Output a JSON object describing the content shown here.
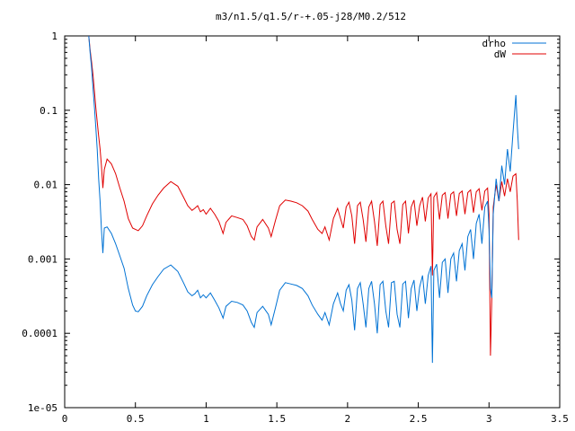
{
  "chart_data": {
    "type": "line",
    "title": "m3/n1.5/q1.5/r-+.05-j28/M0.2/512",
    "xlabel": "",
    "ylabel": "",
    "xlim": [
      0,
      3.5
    ],
    "ylim": [
      1e-05,
      1
    ],
    "yscale": "log",
    "grid": false,
    "legend_position": "top-right",
    "x_ticks": [
      {
        "value": 0,
        "label": "0"
      },
      {
        "value": 0.5,
        "label": "0.5"
      },
      {
        "value": 1,
        "label": "1"
      },
      {
        "value": 1.5,
        "label": "1.5"
      },
      {
        "value": 2,
        "label": "2"
      },
      {
        "value": 2.5,
        "label": "2.5"
      },
      {
        "value": 3,
        "label": "3"
      },
      {
        "value": 3.5,
        "label": "3.5"
      }
    ],
    "y_ticks": [
      {
        "value": 1,
        "label": "1"
      },
      {
        "value": 0.1,
        "label": "0.1"
      },
      {
        "value": 0.01,
        "label": "0.01"
      },
      {
        "value": 0.001,
        "label": "0.001"
      },
      {
        "value": 0.0001,
        "label": "0.0001"
      },
      {
        "value": 1e-05,
        "label": "1e-05"
      }
    ],
    "series": [
      {
        "name": "drho",
        "color": "#0072d4",
        "points": [
          [
            0.17,
            1.0
          ],
          [
            0.18,
            0.6
          ],
          [
            0.19,
            0.38
          ],
          [
            0.2,
            0.2
          ],
          [
            0.21,
            0.11
          ],
          [
            0.22,
            0.06
          ],
          [
            0.23,
            0.03
          ],
          [
            0.24,
            0.012
          ],
          [
            0.25,
            0.006
          ],
          [
            0.26,
            0.0025
          ],
          [
            0.27,
            0.0012
          ],
          [
            0.28,
            0.0026
          ],
          [
            0.3,
            0.0027
          ],
          [
            0.33,
            0.0022
          ],
          [
            0.36,
            0.0016
          ],
          [
            0.39,
            0.0011
          ],
          [
            0.42,
            0.00075
          ],
          [
            0.45,
            0.0004
          ],
          [
            0.48,
            0.00024
          ],
          [
            0.5,
            0.0002
          ],
          [
            0.52,
            0.000195
          ],
          [
            0.55,
            0.00023
          ],
          [
            0.58,
            0.00032
          ],
          [
            0.62,
            0.00045
          ],
          [
            0.66,
            0.00058
          ],
          [
            0.7,
            0.00073
          ],
          [
            0.75,
            0.00083
          ],
          [
            0.8,
            0.00068
          ],
          [
            0.84,
            0.00048
          ],
          [
            0.87,
            0.00036
          ],
          [
            0.9,
            0.00032
          ],
          [
            0.92,
            0.00034
          ],
          [
            0.94,
            0.00038
          ],
          [
            0.96,
            0.0003
          ],
          [
            0.98,
            0.00033
          ],
          [
            1.0,
            0.0003
          ],
          [
            1.03,
            0.00035
          ],
          [
            1.06,
            0.00028
          ],
          [
            1.09,
            0.00022
          ],
          [
            1.12,
            0.00016
          ],
          [
            1.14,
            0.00023
          ],
          [
            1.18,
            0.00027
          ],
          [
            1.22,
            0.00026
          ],
          [
            1.26,
            0.00024
          ],
          [
            1.29,
            0.0002
          ],
          [
            1.32,
            0.00014
          ],
          [
            1.34,
            0.00012
          ],
          [
            1.36,
            0.00019
          ],
          [
            1.4,
            0.00023
          ],
          [
            1.44,
            0.00018
          ],
          [
            1.46,
            0.00013
          ],
          [
            1.49,
            0.00022
          ],
          [
            1.52,
            0.00038
          ],
          [
            1.56,
            0.00048
          ],
          [
            1.6,
            0.00046
          ],
          [
            1.64,
            0.00044
          ],
          [
            1.68,
            0.0004
          ],
          [
            1.72,
            0.00032
          ],
          [
            1.75,
            0.00024
          ],
          [
            1.79,
            0.00018
          ],
          [
            1.82,
            0.00015
          ],
          [
            1.84,
            0.00019
          ],
          [
            1.87,
            0.00013
          ],
          [
            1.9,
            0.00025
          ],
          [
            1.93,
            0.00035
          ],
          [
            1.95,
            0.00025
          ],
          [
            1.97,
            0.0002
          ],
          [
            1.99,
            0.00038
          ],
          [
            2.01,
            0.00045
          ],
          [
            2.03,
            0.00028
          ],
          [
            2.05,
            0.00011
          ],
          [
            2.07,
            0.0004
          ],
          [
            2.09,
            0.00048
          ],
          [
            2.11,
            0.00025
          ],
          [
            2.13,
            0.00012
          ],
          [
            2.15,
            0.0004
          ],
          [
            2.17,
            0.0005
          ],
          [
            2.19,
            0.00025
          ],
          [
            2.21,
            0.0001
          ],
          [
            2.23,
            0.00045
          ],
          [
            2.25,
            0.0005
          ],
          [
            2.27,
            0.0002
          ],
          [
            2.29,
            0.00012
          ],
          [
            2.31,
            0.00048
          ],
          [
            2.33,
            0.0005
          ],
          [
            2.35,
            0.00018
          ],
          [
            2.37,
            0.00012
          ],
          [
            2.39,
            0.00046
          ],
          [
            2.41,
            0.0005
          ],
          [
            2.43,
            0.00016
          ],
          [
            2.45,
            0.0004
          ],
          [
            2.47,
            0.00052
          ],
          [
            2.49,
            0.0002
          ],
          [
            2.51,
            0.00042
          ],
          [
            2.53,
            0.0006
          ],
          [
            2.55,
            0.00025
          ],
          [
            2.57,
            0.0006
          ],
          [
            2.59,
            0.0008
          ],
          [
            2.6,
            4e-05
          ],
          [
            2.61,
            0.0007
          ],
          [
            2.63,
            0.00085
          ],
          [
            2.65,
            0.0003
          ],
          [
            2.67,
            0.0009
          ],
          [
            2.69,
            0.001
          ],
          [
            2.71,
            0.00035
          ],
          [
            2.73,
            0.001
          ],
          [
            2.75,
            0.0012
          ],
          [
            2.77,
            0.0005
          ],
          [
            2.79,
            0.0013
          ],
          [
            2.81,
            0.0016
          ],
          [
            2.83,
            0.0007
          ],
          [
            2.85,
            0.002
          ],
          [
            2.87,
            0.0025
          ],
          [
            2.89,
            0.001
          ],
          [
            2.91,
            0.003
          ],
          [
            2.93,
            0.004
          ],
          [
            2.95,
            0.0016
          ],
          [
            2.97,
            0.005
          ],
          [
            2.99,
            0.006
          ],
          [
            3.0,
            0.0025
          ],
          [
            3.01,
            0.0004
          ],
          [
            3.02,
            0.0003
          ],
          [
            3.03,
            0.004
          ],
          [
            3.05,
            0.012
          ],
          [
            3.07,
            0.006
          ],
          [
            3.09,
            0.018
          ],
          [
            3.11,
            0.01
          ],
          [
            3.13,
            0.03
          ],
          [
            3.15,
            0.015
          ],
          [
            3.17,
            0.05
          ],
          [
            3.19,
            0.16
          ],
          [
            3.2,
            0.06
          ],
          [
            3.21,
            0.03
          ]
        ]
      },
      {
        "name": "dW",
        "color": "#e00000",
        "points": [
          [
            0.17,
            1.0
          ],
          [
            0.18,
            0.65
          ],
          [
            0.19,
            0.45
          ],
          [
            0.2,
            0.3
          ],
          [
            0.21,
            0.18
          ],
          [
            0.22,
            0.11
          ],
          [
            0.23,
            0.07
          ],
          [
            0.24,
            0.045
          ],
          [
            0.25,
            0.03
          ],
          [
            0.26,
            0.018
          ],
          [
            0.27,
            0.009
          ],
          [
            0.28,
            0.016
          ],
          [
            0.3,
            0.022
          ],
          [
            0.33,
            0.019
          ],
          [
            0.36,
            0.014
          ],
          [
            0.39,
            0.009
          ],
          [
            0.42,
            0.006
          ],
          [
            0.45,
            0.0035
          ],
          [
            0.48,
            0.0026
          ],
          [
            0.52,
            0.0024
          ],
          [
            0.55,
            0.0028
          ],
          [
            0.58,
            0.0038
          ],
          [
            0.62,
            0.0055
          ],
          [
            0.66,
            0.0072
          ],
          [
            0.7,
            0.009
          ],
          [
            0.75,
            0.011
          ],
          [
            0.8,
            0.0095
          ],
          [
            0.84,
            0.0068
          ],
          [
            0.87,
            0.0052
          ],
          [
            0.9,
            0.0045
          ],
          [
            0.92,
            0.0048
          ],
          [
            0.94,
            0.0052
          ],
          [
            0.96,
            0.0043
          ],
          [
            0.98,
            0.0046
          ],
          [
            1.0,
            0.004
          ],
          [
            1.03,
            0.0048
          ],
          [
            1.06,
            0.004
          ],
          [
            1.09,
            0.0032
          ],
          [
            1.12,
            0.0022
          ],
          [
            1.14,
            0.0031
          ],
          [
            1.18,
            0.0038
          ],
          [
            1.22,
            0.0036
          ],
          [
            1.26,
            0.0034
          ],
          [
            1.29,
            0.0028
          ],
          [
            1.32,
            0.002
          ],
          [
            1.34,
            0.0018
          ],
          [
            1.36,
            0.0027
          ],
          [
            1.4,
            0.0034
          ],
          [
            1.44,
            0.0026
          ],
          [
            1.46,
            0.002
          ],
          [
            1.49,
            0.0033
          ],
          [
            1.52,
            0.0052
          ],
          [
            1.56,
            0.0062
          ],
          [
            1.6,
            0.006
          ],
          [
            1.64,
            0.0057
          ],
          [
            1.68,
            0.0052
          ],
          [
            1.72,
            0.0044
          ],
          [
            1.75,
            0.0034
          ],
          [
            1.79,
            0.0025
          ],
          [
            1.82,
            0.0022
          ],
          [
            1.84,
            0.0027
          ],
          [
            1.87,
            0.0018
          ],
          [
            1.9,
            0.0035
          ],
          [
            1.93,
            0.0048
          ],
          [
            1.95,
            0.0035
          ],
          [
            1.97,
            0.0026
          ],
          [
            1.99,
            0.005
          ],
          [
            2.01,
            0.0058
          ],
          [
            2.03,
            0.0038
          ],
          [
            2.05,
            0.0016
          ],
          [
            2.07,
            0.0052
          ],
          [
            2.09,
            0.0058
          ],
          [
            2.11,
            0.0034
          ],
          [
            2.13,
            0.0017
          ],
          [
            2.15,
            0.005
          ],
          [
            2.17,
            0.006
          ],
          [
            2.19,
            0.0032
          ],
          [
            2.21,
            0.0015
          ],
          [
            2.23,
            0.0054
          ],
          [
            2.25,
            0.006
          ],
          [
            2.27,
            0.0028
          ],
          [
            2.29,
            0.0016
          ],
          [
            2.31,
            0.0056
          ],
          [
            2.33,
            0.006
          ],
          [
            2.35,
            0.0025
          ],
          [
            2.37,
            0.0016
          ],
          [
            2.39,
            0.0054
          ],
          [
            2.41,
            0.006
          ],
          [
            2.43,
            0.0022
          ],
          [
            2.45,
            0.005
          ],
          [
            2.47,
            0.0062
          ],
          [
            2.49,
            0.0028
          ],
          [
            2.51,
            0.0052
          ],
          [
            2.53,
            0.0068
          ],
          [
            2.55,
            0.0032
          ],
          [
            2.57,
            0.0066
          ],
          [
            2.59,
            0.0075
          ],
          [
            2.6,
            0.0006
          ],
          [
            2.61,
            0.0068
          ],
          [
            2.63,
            0.0078
          ],
          [
            2.65,
            0.0034
          ],
          [
            2.67,
            0.0072
          ],
          [
            2.69,
            0.0078
          ],
          [
            2.71,
            0.0035
          ],
          [
            2.73,
            0.0074
          ],
          [
            2.75,
            0.008
          ],
          [
            2.77,
            0.0038
          ],
          [
            2.79,
            0.0076
          ],
          [
            2.81,
            0.0082
          ],
          [
            2.83,
            0.004
          ],
          [
            2.85,
            0.0078
          ],
          [
            2.87,
            0.0085
          ],
          [
            2.89,
            0.0042
          ],
          [
            2.91,
            0.008
          ],
          [
            2.93,
            0.0088
          ],
          [
            2.95,
            0.0045
          ],
          [
            2.97,
            0.0082
          ],
          [
            2.99,
            0.009
          ],
          [
            3.0,
            0.004
          ],
          [
            3.01,
            5e-05
          ],
          [
            3.02,
            0.0003
          ],
          [
            3.03,
            0.005
          ],
          [
            3.05,
            0.01
          ],
          [
            3.07,
            0.006
          ],
          [
            3.09,
            0.011
          ],
          [
            3.11,
            0.007
          ],
          [
            3.13,
            0.012
          ],
          [
            3.15,
            0.008
          ],
          [
            3.17,
            0.013
          ],
          [
            3.19,
            0.014
          ],
          [
            3.2,
            0.006
          ],
          [
            3.21,
            0.0018
          ]
        ]
      }
    ]
  }
}
